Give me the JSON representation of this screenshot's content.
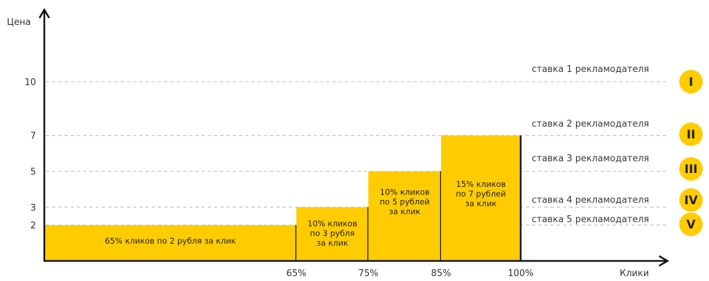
{
  "chart_data": {
    "type": "bar",
    "ylabel": "Цена",
    "xlabel": "Клики",
    "y_ticks": [
      "10",
      "7",
      "5",
      "3",
      "2"
    ],
    "x_ticks": [
      "65%",
      "75%",
      "85%",
      "100%"
    ],
    "grid": "dashed horizontal at bid levels",
    "bars": [
      {
        "x_start": 0,
        "x_end": 65,
        "value": 2,
        "label": "65% кликов по 2 рубля за клик"
      },
      {
        "x_start": 65,
        "x_end": 75,
        "value": 3,
        "label": "10% кликов по 3 рубля за клик"
      },
      {
        "x_start": 75,
        "x_end": 85,
        "value": 5,
        "label": "10% кликов по 5 рублей за клик"
      },
      {
        "x_start": 85,
        "x_end": 100,
        "value": 7,
        "label": "15% кликов по 7 рублей за клик"
      }
    ],
    "bids": [
      {
        "value": 10,
        "label": "ставка 1 рекламодателя",
        "badge": "I"
      },
      {
        "value": 7,
        "label": "ставка 2 рекламодателя",
        "badge": "II"
      },
      {
        "value": 5,
        "label": "ставка 3 рекламодателя",
        "badge": "III"
      },
      {
        "value": 3,
        "label": "ставка 4 рекламодателя",
        "badge": "IV"
      },
      {
        "value": 2,
        "label": "ставка 5 рекламодателя",
        "badge": "V"
      }
    ],
    "colors": {
      "bar": "#FFCC00",
      "axis": "#111111",
      "grid": "#c8c8c8",
      "badge": "#FFCC00"
    }
  }
}
